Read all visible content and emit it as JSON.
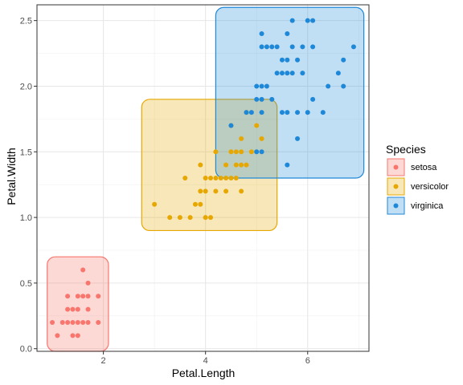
{
  "chart_data": {
    "type": "scatter",
    "xlabel": "Petal.Length",
    "ylabel": "Petal.Width",
    "xlim": [
      0.7,
      7.2
    ],
    "ylim": [
      -0.02,
      2.62
    ],
    "x_ticks": [
      2,
      4,
      6
    ],
    "y_ticks": [
      0.0,
      0.5,
      1.0,
      1.5,
      2.0,
      2.5
    ],
    "x_tick_labels": [
      "2",
      "4",
      "6"
    ],
    "y_tick_labels": [
      "0.0",
      "0.5",
      "1.0",
      "1.5",
      "2.0",
      "2.5"
    ],
    "grid": true,
    "legend": {
      "title": "Species",
      "placement": "right",
      "entries": [
        "setosa",
        "versicolor",
        "virginica"
      ]
    },
    "series": [
      {
        "name": "setosa",
        "color": "#F8766D",
        "box": {
          "xmin": 0.9,
          "xmax": 2.1,
          "ymin": -0.02,
          "ymax": 0.7
        },
        "points": [
          [
            1.0,
            0.2
          ],
          [
            1.1,
            0.1
          ],
          [
            1.2,
            0.2
          ],
          [
            1.3,
            0.2
          ],
          [
            1.3,
            0.3
          ],
          [
            1.3,
            0.4
          ],
          [
            1.4,
            0.1
          ],
          [
            1.4,
            0.2
          ],
          [
            1.4,
            0.3
          ],
          [
            1.5,
            0.1
          ],
          [
            1.5,
            0.2
          ],
          [
            1.5,
            0.3
          ],
          [
            1.5,
            0.4
          ],
          [
            1.6,
            0.2
          ],
          [
            1.6,
            0.4
          ],
          [
            1.6,
            0.6
          ],
          [
            1.7,
            0.2
          ],
          [
            1.7,
            0.3
          ],
          [
            1.7,
            0.4
          ],
          [
            1.7,
            0.5
          ],
          [
            1.9,
            0.2
          ],
          [
            1.9,
            0.4
          ]
        ]
      },
      {
        "name": "versicolor",
        "color": "#E6A800",
        "box": {
          "xmin": 2.75,
          "xmax": 5.4,
          "ymin": 0.9,
          "ymax": 1.9
        },
        "points": [
          [
            3.0,
            1.1
          ],
          [
            3.3,
            1.0
          ],
          [
            3.5,
            1.0
          ],
          [
            3.6,
            1.3
          ],
          [
            3.7,
            1.0
          ],
          [
            3.8,
            1.1
          ],
          [
            3.9,
            1.1
          ],
          [
            3.9,
            1.2
          ],
          [
            3.9,
            1.4
          ],
          [
            4.0,
            1.0
          ],
          [
            4.0,
            1.2
          ],
          [
            4.0,
            1.3
          ],
          [
            4.1,
            1.0
          ],
          [
            4.1,
            1.3
          ],
          [
            4.2,
            1.2
          ],
          [
            4.2,
            1.3
          ],
          [
            4.2,
            1.5
          ],
          [
            4.3,
            1.3
          ],
          [
            4.4,
            1.2
          ],
          [
            4.4,
            1.3
          ],
          [
            4.4,
            1.4
          ],
          [
            4.5,
            1.3
          ],
          [
            4.5,
            1.5
          ],
          [
            4.5,
            1.7
          ],
          [
            4.6,
            1.3
          ],
          [
            4.6,
            1.4
          ],
          [
            4.6,
            1.5
          ],
          [
            4.7,
            1.2
          ],
          [
            4.7,
            1.4
          ],
          [
            4.7,
            1.5
          ],
          [
            4.7,
            1.6
          ],
          [
            4.8,
            1.4
          ],
          [
            4.8,
            1.8
          ],
          [
            4.9,
            1.5
          ],
          [
            5.0,
            1.7
          ],
          [
            5.1,
            1.6
          ]
        ]
      },
      {
        "name": "virginica",
        "color": "#1E88D8",
        "box": {
          "xmin": 4.2,
          "xmax": 7.1,
          "ymin": 1.3,
          "ymax": 2.6
        },
        "points": [
          [
            4.5,
            1.7
          ],
          [
            4.8,
            1.8
          ],
          [
            4.9,
            1.8
          ],
          [
            5.0,
            1.5
          ],
          [
            5.0,
            1.9
          ],
          [
            5.0,
            2.0
          ],
          [
            5.1,
            1.5
          ],
          [
            5.1,
            1.8
          ],
          [
            5.1,
            1.9
          ],
          [
            5.1,
            2.0
          ],
          [
            5.1,
            2.3
          ],
          [
            5.1,
            2.4
          ],
          [
            5.2,
            2.0
          ],
          [
            5.2,
            2.3
          ],
          [
            5.3,
            1.9
          ],
          [
            5.3,
            2.3
          ],
          [
            5.4,
            2.1
          ],
          [
            5.4,
            2.3
          ],
          [
            5.5,
            1.8
          ],
          [
            5.5,
            2.1
          ],
          [
            5.5,
            2.2
          ],
          [
            5.6,
            1.4
          ],
          [
            5.6,
            1.8
          ],
          [
            5.6,
            2.1
          ],
          [
            5.6,
            2.2
          ],
          [
            5.6,
            2.4
          ],
          [
            5.7,
            2.1
          ],
          [
            5.7,
            2.3
          ],
          [
            5.7,
            2.5
          ],
          [
            5.8,
            1.6
          ],
          [
            5.8,
            1.8
          ],
          [
            5.8,
            2.2
          ],
          [
            5.9,
            2.1
          ],
          [
            5.9,
            2.3
          ],
          [
            6.0,
            1.8
          ],
          [
            6.0,
            2.5
          ],
          [
            6.1,
            1.9
          ],
          [
            6.1,
            2.3
          ],
          [
            6.1,
            2.5
          ],
          [
            6.3,
            1.8
          ],
          [
            6.4,
            2.0
          ],
          [
            6.6,
            2.1
          ],
          [
            6.7,
            2.0
          ],
          [
            6.7,
            2.2
          ],
          [
            6.9,
            2.3
          ]
        ]
      }
    ]
  }
}
